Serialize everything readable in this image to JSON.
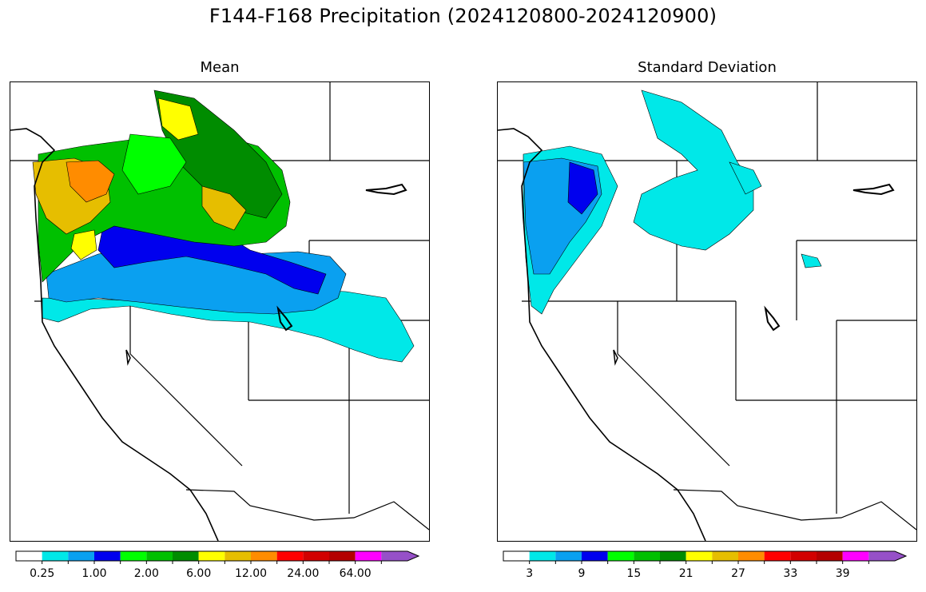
{
  "title": "F144-F168 Precipitation (2024120800-2024120900)",
  "colors": {
    "bins": [
      "#ffffff",
      "#00e8e8",
      "#0aa0f0",
      "#0000ee",
      "#00ff00",
      "#00c000",
      "#008c00",
      "#ffff00",
      "#e6be00",
      "#ff8c00",
      "#ff0000",
      "#d20000",
      "#b40000",
      "#ff00ff",
      "#9650c8"
    ]
  },
  "panels": [
    {
      "title": "Standard Deviation",
      "colorbar": {
        "tick_labels": [
          "3",
          "9",
          "15",
          "21",
          "27",
          "33",
          "39"
        ]
      }
    },
    {
      "title": "Mean",
      "colorbar": {
        "tick_labels": [
          "0.25",
          "1.00",
          "2.00",
          "6.00",
          "12.00",
          "24.00",
          "64.00"
        ]
      }
    }
  ]
}
